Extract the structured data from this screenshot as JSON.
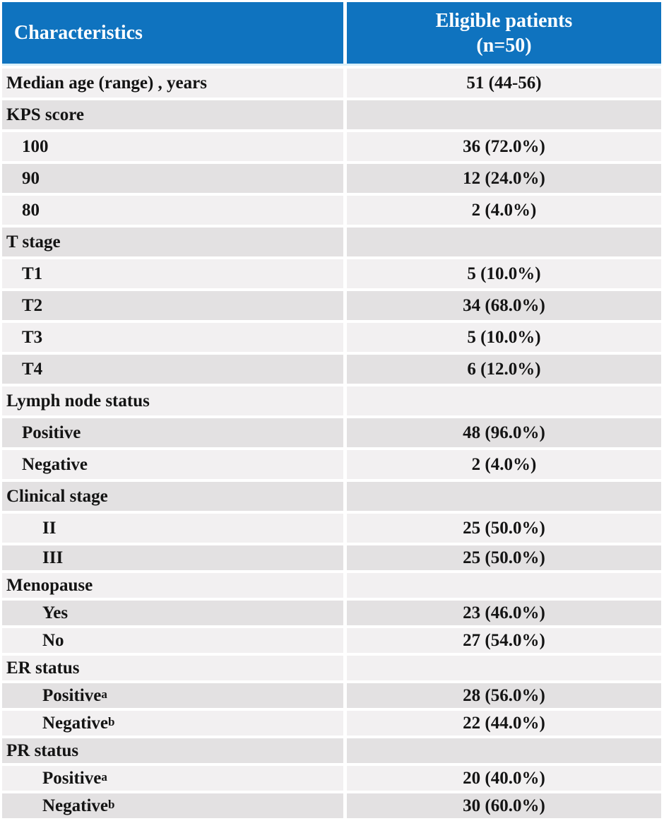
{
  "table": {
    "header": {
      "col1": "Characteristics",
      "col2_line1": "Eligible patients",
      "col2_line2": "(n=50)"
    },
    "rows": [
      {
        "label": "Median age (range) , years",
        "sup": "",
        "value": "51 (44-56)",
        "indent": 0,
        "shade": "light"
      },
      {
        "label": "KPS score",
        "sup": "",
        "value": "",
        "indent": 0,
        "shade": "dim"
      },
      {
        "label": "100",
        "sup": "",
        "value": "36 (72.0%)",
        "indent": 1,
        "shade": "light"
      },
      {
        "label": "90",
        "sup": "",
        "value": "12 (24.0%)",
        "indent": 1,
        "shade": "dim"
      },
      {
        "label": "80",
        "sup": "",
        "value": "2 (4.0%)",
        "indent": 1,
        "shade": "light"
      },
      {
        "label": "T stage",
        "sup": "",
        "value": "",
        "indent": 0,
        "shade": "dim"
      },
      {
        "label": "T1",
        "sup": "",
        "value": "5 (10.0%)",
        "indent": 1,
        "shade": "light"
      },
      {
        "label": "T2",
        "sup": "",
        "value": "34 (68.0%)",
        "indent": 1,
        "shade": "dim"
      },
      {
        "label": "T3",
        "sup": "",
        "value": "5 (10.0%)",
        "indent": 1,
        "shade": "light"
      },
      {
        "label": "T4",
        "sup": "",
        "value": "6 (12.0%)",
        "indent": 1,
        "shade": "dim"
      },
      {
        "label": "Lymph node status",
        "sup": "",
        "value": "",
        "indent": 0,
        "shade": "light"
      },
      {
        "label": "Positive",
        "sup": "",
        "value": "48 (96.0%)",
        "indent": 1,
        "shade": "dim"
      },
      {
        "label": "Negative",
        "sup": "",
        "value": "2 (4.0%)",
        "indent": 1,
        "shade": "light"
      },
      {
        "label": "Clinical stage",
        "sup": "",
        "value": "",
        "indent": 0,
        "shade": "dim"
      },
      {
        "label": "II",
        "sup": "",
        "value": "25 (50.0%)",
        "indent": 2,
        "shade": "light"
      },
      {
        "label": "III",
        "sup": "",
        "value": "25 (50.0%)",
        "indent": 2,
        "shade": "dim"
      },
      {
        "label": "Menopause",
        "sup": "",
        "value": "",
        "indent": 0,
        "shade": "light"
      },
      {
        "label": "Yes",
        "sup": "",
        "value": "23 (46.0%)",
        "indent": 2,
        "shade": "dim"
      },
      {
        "label": "No",
        "sup": "",
        "value": "27 (54.0%)",
        "indent": 2,
        "shade": "light"
      },
      {
        "label": "ER status",
        "sup": "",
        "value": "",
        "indent": 0,
        "shade": "light"
      },
      {
        "label": "Positive",
        "sup": "a",
        "value": "28 (56.0%)",
        "indent": 2,
        "shade": "dim"
      },
      {
        "label": "Negative",
        "sup": "b",
        "value": "22 (44.0%)",
        "indent": 2,
        "shade": "light"
      },
      {
        "label": "PR status",
        "sup": "",
        "value": "",
        "indent": 0,
        "shade": "dim"
      },
      {
        "label": "Positive",
        "sup": "a",
        "value": "20 (40.0%)",
        "indent": 2,
        "shade": "light"
      },
      {
        "label": "Negative",
        "sup": "b",
        "value": "30 (60.0%)",
        "indent": 2,
        "shade": "dim"
      }
    ],
    "colors": {
      "header_bg": "#0f73bf",
      "header_text": "#ffffff",
      "row_light": "#f2f0f1",
      "row_dim": "#e3e1e2",
      "body_text": "#141414",
      "divider": "#ffffff"
    }
  }
}
